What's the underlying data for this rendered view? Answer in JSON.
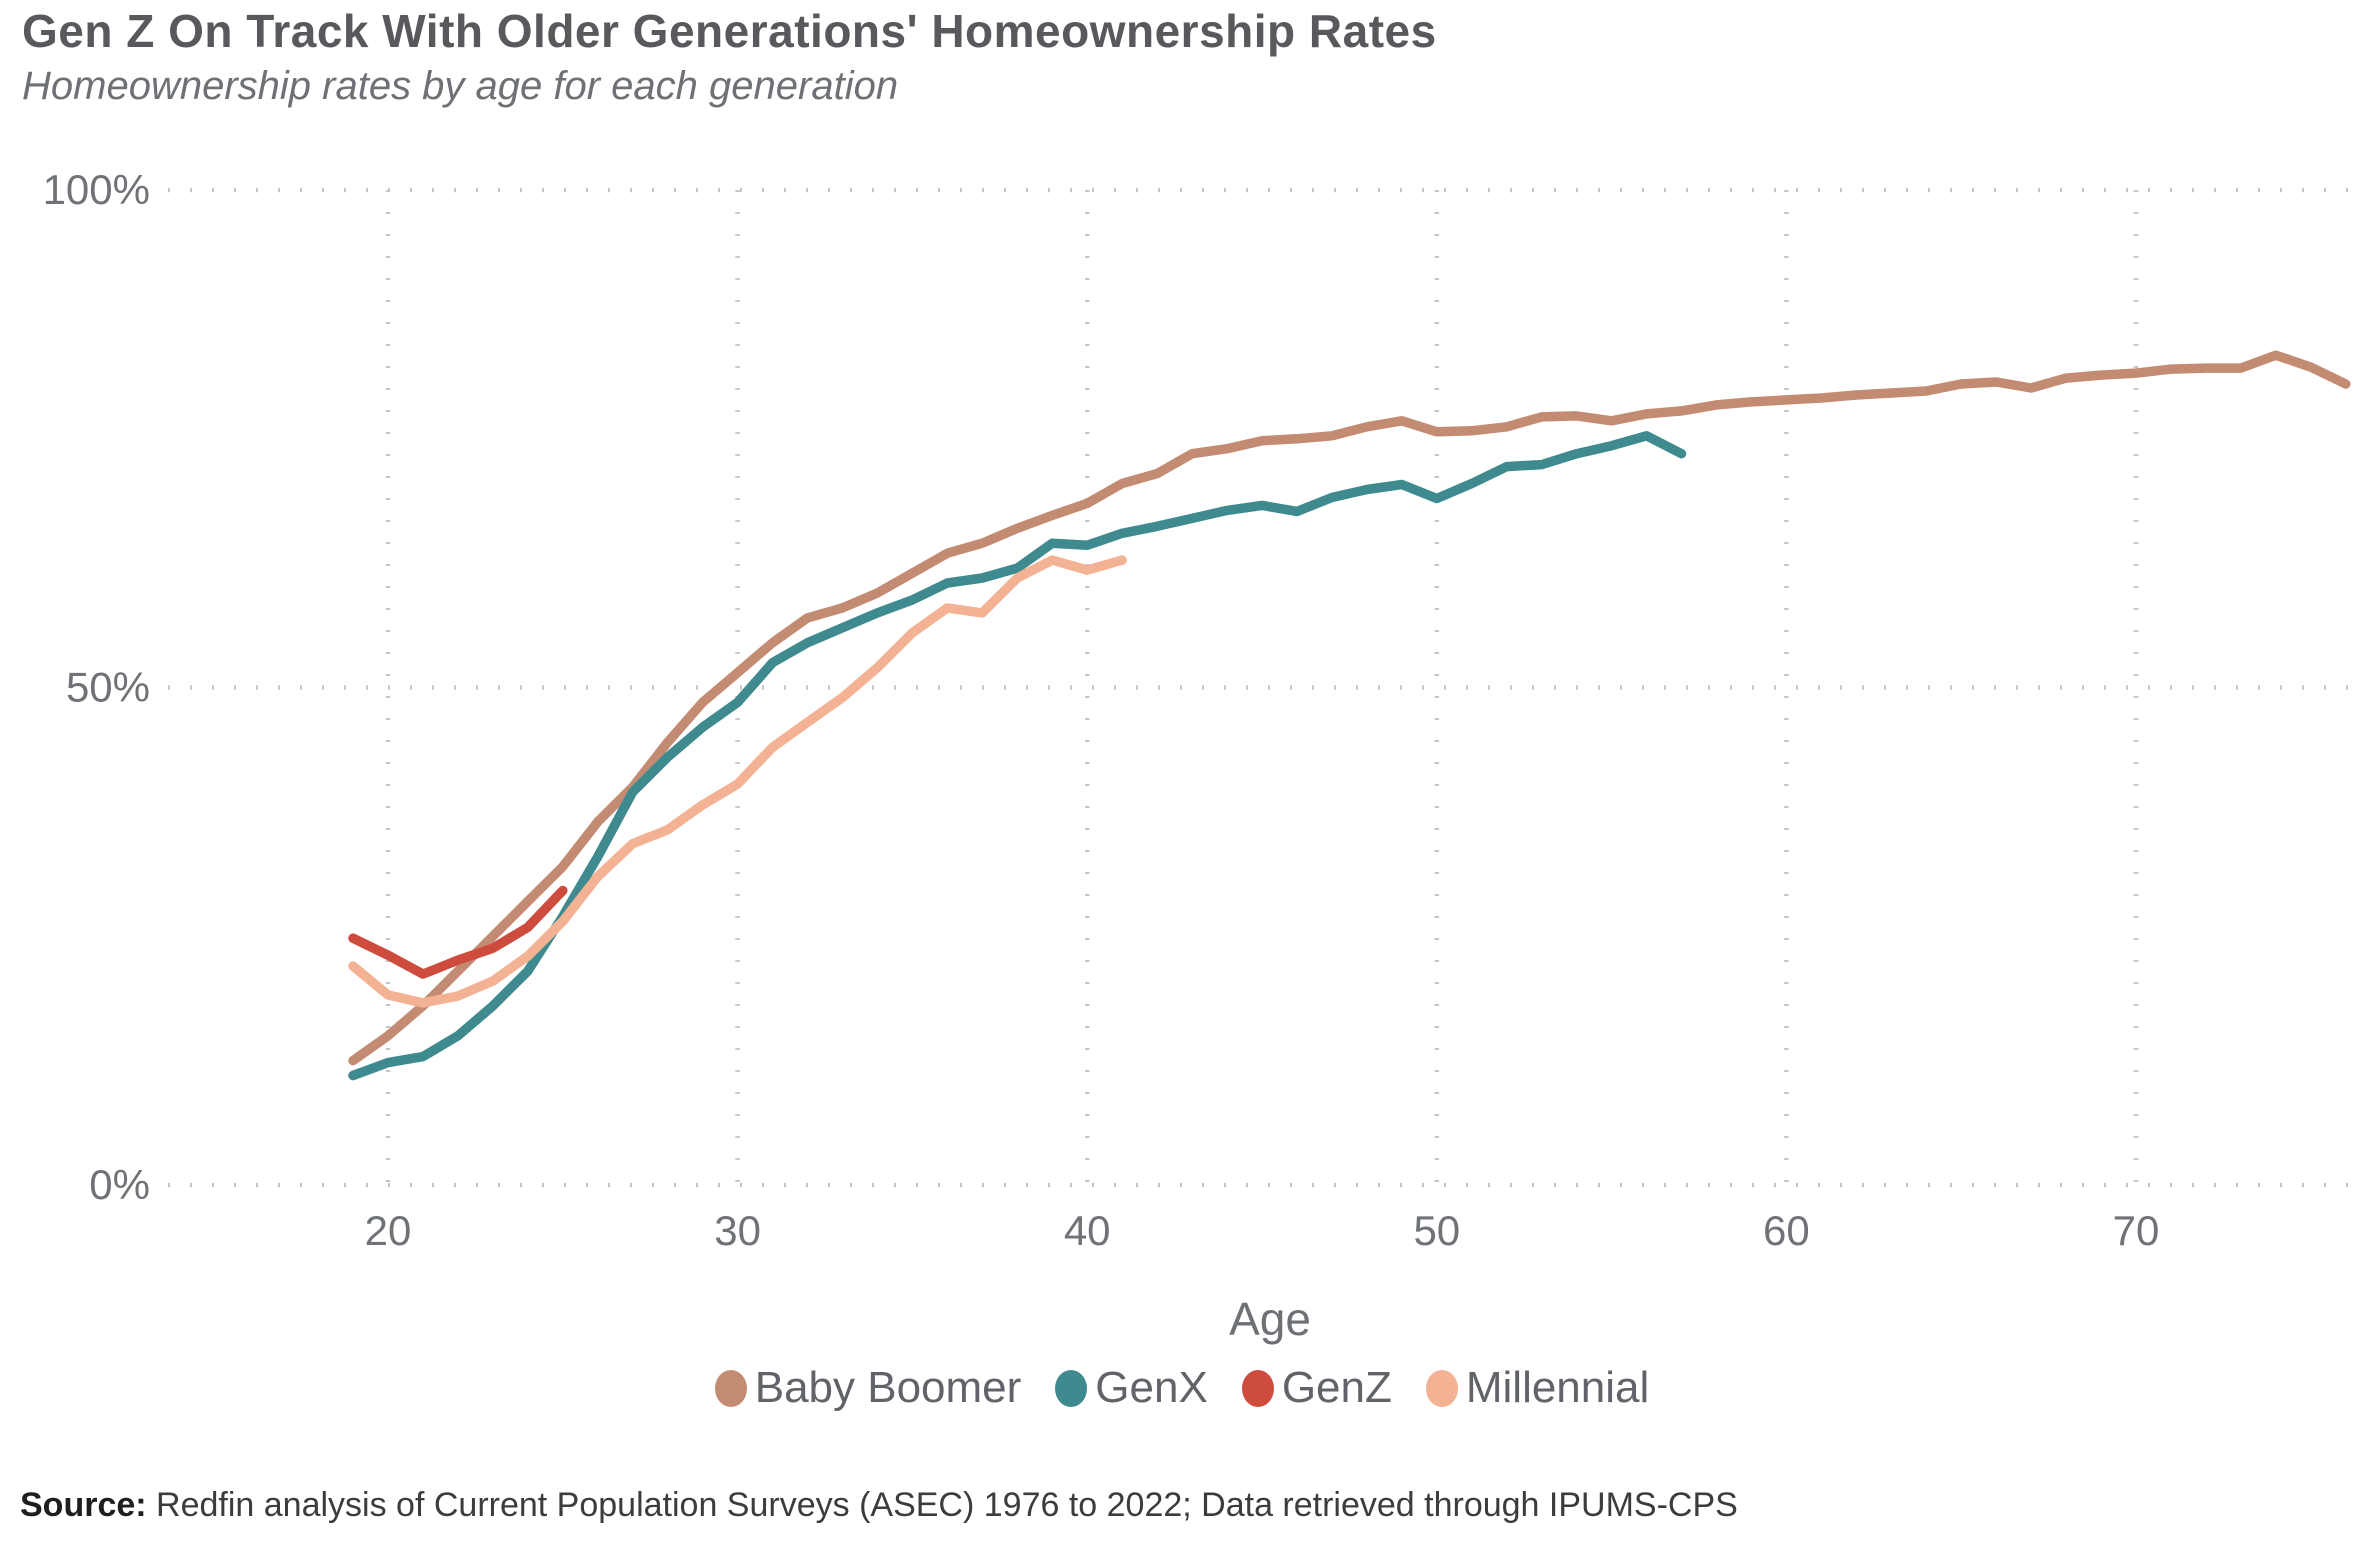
{
  "header": {
    "title": "Gen Z On Track With Older Generations' Homeownership Rates",
    "subtitle": "Homeownership rates by age for each generation"
  },
  "chart_data": {
    "type": "line",
    "title": "Gen Z On Track With Older Generations' Homeownership Rates",
    "subtitle": "Homeownership rates by age for each generation",
    "xlabel": "Age",
    "ylabel": "",
    "xlim": [
      17.5,
      76.8
    ],
    "ylim": [
      0,
      100
    ],
    "xticks": [
      20,
      30,
      40,
      50,
      60,
      70
    ],
    "yticks": [
      {
        "value": 0,
        "label": "0%"
      },
      {
        "value": 50,
        "label": "50%"
      },
      {
        "value": 100,
        "label": "100%"
      }
    ],
    "grid": "dotted",
    "grid_color": "#c6c6c6",
    "legend_position": "bottom",
    "series": [
      {
        "name": "Baby Boomer",
        "color": "#c48b73",
        "points": [
          [
            19,
            12.5
          ],
          [
            20,
            15
          ],
          [
            21,
            18
          ],
          [
            22,
            21.5
          ],
          [
            23,
            25
          ],
          [
            24,
            28.5
          ],
          [
            25,
            32
          ],
          [
            26,
            36.5
          ],
          [
            27,
            40
          ],
          [
            28,
            44.5
          ],
          [
            29,
            48.5
          ],
          [
            30,
            51.5
          ],
          [
            31,
            54.5
          ],
          [
            32,
            57
          ],
          [
            33,
            58
          ],
          [
            34,
            59.5
          ],
          [
            35,
            61.5
          ],
          [
            36,
            63.5
          ],
          [
            37,
            64.5
          ],
          [
            38,
            66
          ],
          [
            39,
            67.3
          ],
          [
            40,
            68.5
          ],
          [
            41,
            70.5
          ],
          [
            42,
            71.5
          ],
          [
            43,
            73.5
          ],
          [
            44,
            74
          ],
          [
            45,
            74.8
          ],
          [
            46,
            75
          ],
          [
            47,
            75.3
          ],
          [
            48,
            76.2
          ],
          [
            49,
            76.8
          ],
          [
            50,
            75.7
          ],
          [
            51,
            75.8
          ],
          [
            52,
            76.2
          ],
          [
            53,
            77.2
          ],
          [
            54,
            77.3
          ],
          [
            55,
            76.8
          ],
          [
            56,
            77.5
          ],
          [
            57,
            77.8
          ],
          [
            58,
            78.4
          ],
          [
            59,
            78.7
          ],
          [
            60,
            78.9
          ],
          [
            61,
            79.1
          ],
          [
            62,
            79.4
          ],
          [
            63,
            79.6
          ],
          [
            64,
            79.8
          ],
          [
            65,
            80.5
          ],
          [
            66,
            80.7
          ],
          [
            67,
            80.1
          ],
          [
            68,
            81.1
          ],
          [
            69,
            81.4
          ],
          [
            70,
            81.6
          ],
          [
            71,
            82
          ],
          [
            72,
            82.1
          ],
          [
            73,
            82.1
          ],
          [
            74,
            83.4
          ],
          [
            75,
            82.2
          ],
          [
            76,
            80.5
          ]
        ]
      },
      {
        "name": "GenX",
        "color": "#3e8a8e",
        "points": [
          [
            19,
            11
          ],
          [
            20,
            12.3
          ],
          [
            21,
            12.9
          ],
          [
            22,
            15
          ],
          [
            23,
            18
          ],
          [
            24,
            21.5
          ],
          [
            25,
            27
          ],
          [
            26,
            33
          ],
          [
            27,
            39.5
          ],
          [
            28,
            43
          ],
          [
            29,
            46
          ],
          [
            30,
            48.5
          ],
          [
            31,
            52.5
          ],
          [
            32,
            54.5
          ],
          [
            33,
            56
          ],
          [
            34,
            57.5
          ],
          [
            35,
            58.8
          ],
          [
            36,
            60.5
          ],
          [
            37,
            61
          ],
          [
            38,
            62
          ],
          [
            39,
            64.5
          ],
          [
            40,
            64.3
          ],
          [
            41,
            65.5
          ],
          [
            42,
            66.2
          ],
          [
            43,
            67
          ],
          [
            44,
            67.8
          ],
          [
            45,
            68.3
          ],
          [
            46,
            67.7
          ],
          [
            47,
            69.1
          ],
          [
            48,
            69.9
          ],
          [
            49,
            70.4
          ],
          [
            50,
            69
          ],
          [
            51,
            70.5
          ],
          [
            52,
            72.2
          ],
          [
            53,
            72.4
          ],
          [
            54,
            73.5
          ],
          [
            55,
            74.3
          ],
          [
            56,
            75.3
          ],
          [
            57,
            73.5
          ]
        ]
      },
      {
        "name": "GenZ",
        "color": "#cd4c3e",
        "points": [
          [
            19,
            24.8
          ],
          [
            20,
            23.1
          ],
          [
            21,
            21.2
          ],
          [
            22,
            22.6
          ],
          [
            23,
            23.8
          ],
          [
            24,
            25.9
          ],
          [
            25,
            29.6
          ]
        ]
      },
      {
        "name": "Millennial",
        "color": "#f4b294",
        "points": [
          [
            19,
            22
          ],
          [
            20,
            19.1
          ],
          [
            21,
            18.3
          ],
          [
            22,
            19
          ],
          [
            23,
            20.5
          ],
          [
            24,
            23
          ],
          [
            25,
            26.5
          ],
          [
            26,
            31
          ],
          [
            27,
            34.3
          ],
          [
            28,
            35.7
          ],
          [
            29,
            38.2
          ],
          [
            30,
            40.3
          ],
          [
            31,
            44
          ],
          [
            32,
            46.5
          ],
          [
            33,
            49
          ],
          [
            34,
            52
          ],
          [
            35,
            55.5
          ],
          [
            36,
            58
          ],
          [
            37,
            57.5
          ],
          [
            38,
            61
          ],
          [
            39,
            62.8
          ],
          [
            40,
            61.8
          ],
          [
            41,
            62.8
          ]
        ]
      }
    ]
  },
  "source": {
    "label": "Source:",
    "text": " Redfin analysis of Current Population Surveys (ASEC) 1976 to 2022; Data retrieved through IPUMS-CPS"
  }
}
